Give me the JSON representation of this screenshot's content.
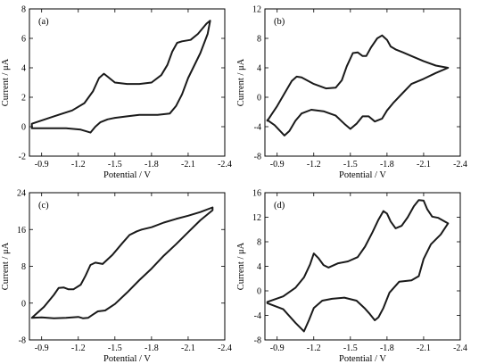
{
  "chart_data": [
    {
      "type": "line",
      "panel_label": "(a)",
      "xlabel": "Potential / V",
      "ylabel": "Current / μA",
      "xlim": [
        -0.8,
        -2.4
      ],
      "ylim": [
        -2,
        8
      ],
      "xticks": [
        -0.9,
        -1.2,
        -1.5,
        -1.8,
        -2.1,
        -2.4
      ],
      "xtick_labels": [
        "-0.9",
        "-1.2",
        "-1.5",
        "-1.8",
        "-2.1",
        "-2.4"
      ],
      "yticks": [
        -2,
        0,
        2,
        4,
        6,
        8
      ],
      "ytick_labels": [
        "-2",
        "0",
        "2",
        "4",
        "6",
        "8"
      ],
      "grid": false,
      "series": [
        {
          "x": [
            -0.82,
            -1.0,
            -1.15,
            -1.25,
            -1.32,
            -1.37,
            -1.41,
            -1.44,
            -1.5,
            -1.6,
            -1.7,
            -1.8,
            -1.88,
            -1.93,
            -1.97,
            -2.01,
            -2.05,
            -2.12,
            -2.18,
            -2.25,
            -2.28,
            -2.26,
            -2.2,
            -2.1,
            -2.05,
            -2.0,
            -1.95,
            -1.85,
            -1.7,
            -1.6,
            -1.5,
            -1.44,
            -1.38,
            -1.34,
            -1.3,
            -1.22,
            -1.1,
            -0.95,
            -0.82
          ],
          "y": [
            0.2,
            0.7,
            1.1,
            1.6,
            2.4,
            3.3,
            3.6,
            3.4,
            3.0,
            2.9,
            2.9,
            3.0,
            3.5,
            4.2,
            5.1,
            5.7,
            5.8,
            5.9,
            6.3,
            7.0,
            7.2,
            6.3,
            5.0,
            3.3,
            2.2,
            1.4,
            0.9,
            0.8,
            0.8,
            0.7,
            0.6,
            0.5,
            0.3,
            0.0,
            -0.4,
            -0.2,
            -0.1,
            -0.1,
            -0.1
          ]
        }
      ]
    },
    {
      "type": "line",
      "panel_label": "(b)",
      "xlabel": "Potential / V",
      "ylabel": "Current / μA",
      "xlim": [
        -0.8,
        -2.4
      ],
      "ylim": [
        -8,
        12
      ],
      "xticks": [
        -0.9,
        -1.2,
        -1.5,
        -1.8,
        -2.1,
        -2.4
      ],
      "xtick_labels": [
        "-0.9",
        "-1.2",
        "-1.5",
        "-1.8",
        "-2.1",
        "-2.4"
      ],
      "yticks": [
        -8,
        -4,
        0,
        4,
        8,
        12
      ],
      "ytick_labels": [
        "-8",
        "-4",
        "0",
        "4",
        "8",
        "12"
      ],
      "grid": false,
      "series": [
        {
          "x": [
            -0.82,
            -0.9,
            -0.97,
            -1.02,
            -1.06,
            -1.1,
            -1.2,
            -1.3,
            -1.38,
            -1.43,
            -1.47,
            -1.52,
            -1.56,
            -1.6,
            -1.63,
            -1.67,
            -1.72,
            -1.76,
            -1.8,
            -1.83,
            -1.87,
            -1.93,
            -2.0,
            -2.1,
            -2.2,
            -2.3,
            -2.2,
            -2.1,
            -2.0,
            -1.93,
            -1.85,
            -1.8,
            -1.76,
            -1.7,
            -1.65,
            -1.6,
            -1.55,
            -1.5,
            -1.45,
            -1.38,
            -1.28,
            -1.18,
            -1.1,
            -1.05,
            -1.0,
            -0.96,
            -0.88,
            -0.82
          ],
          "y": [
            -3.2,
            -1.2,
            0.8,
            2.2,
            2.8,
            2.7,
            1.8,
            1.2,
            1.3,
            2.3,
            4.2,
            6.0,
            6.1,
            5.6,
            5.6,
            6.8,
            8.0,
            8.4,
            7.8,
            6.9,
            6.5,
            6.1,
            5.6,
            4.9,
            4.3,
            4.0,
            3.3,
            2.5,
            1.8,
            0.6,
            -0.8,
            -1.8,
            -2.9,
            -3.3,
            -2.6,
            -2.6,
            -3.6,
            -4.3,
            -3.6,
            -2.5,
            -1.9,
            -1.7,
            -2.2,
            -3.2,
            -4.6,
            -5.2,
            -3.8,
            -3.1
          ]
        }
      ]
    },
    {
      "type": "line",
      "panel_label": "(c)",
      "xlabel": "Potential / V",
      "ylabel": "Current / μA",
      "xlim": [
        -0.8,
        -2.4
      ],
      "ylim": [
        -8,
        24
      ],
      "xticks": [
        -0.9,
        -1.2,
        -1.5,
        -1.8,
        -2.1,
        -2.4
      ],
      "xtick_labels": [
        "-0.9",
        "-1.2",
        "-1.5",
        "-1.8",
        "-2.1",
        "-2.4"
      ],
      "yticks": [
        -8,
        0,
        8,
        16,
        24
      ],
      "ytick_labels": [
        "-8",
        "0",
        "8",
        "16",
        "24"
      ],
      "grid": false,
      "series": [
        {
          "x": [
            -0.82,
            -0.92,
            -1.0,
            -1.04,
            -1.08,
            -1.12,
            -1.16,
            -1.22,
            -1.26,
            -1.3,
            -1.34,
            -1.4,
            -1.48,
            -1.56,
            -1.62,
            -1.68,
            -1.72,
            -1.8,
            -1.9,
            -2.0,
            -2.1,
            -2.2,
            -2.3,
            -2.3,
            -2.2,
            -2.1,
            -2.0,
            -1.9,
            -1.8,
            -1.7,
            -1.6,
            -1.5,
            -1.42,
            -1.36,
            -1.32,
            -1.28,
            -1.24,
            -1.2,
            -1.1,
            -1.0,
            -0.9,
            -0.82
          ],
          "y": [
            -3.2,
            -0.8,
            1.8,
            3.3,
            3.4,
            3.0,
            3.0,
            4.0,
            6.0,
            8.3,
            8.8,
            8.5,
            10.5,
            13.0,
            14.8,
            15.6,
            16.0,
            16.5,
            17.5,
            18.3,
            19.0,
            19.8,
            20.8,
            20.2,
            18.0,
            15.4,
            12.8,
            10.3,
            7.5,
            5.0,
            2.3,
            -0.2,
            -1.6,
            -1.8,
            -2.5,
            -3.2,
            -3.3,
            -3.0,
            -3.2,
            -3.3,
            -3.1,
            -3.2
          ]
        }
      ]
    },
    {
      "type": "line",
      "panel_label": "(d)",
      "xlabel": "Potential / V",
      "ylabel": "Current / μA",
      "xlim": [
        -0.8,
        -2.4
      ],
      "ylim": [
        -8,
        16
      ],
      "xticks": [
        -0.9,
        -1.2,
        -1.5,
        -1.8,
        -2.1,
        -2.4
      ],
      "xtick_labels": [
        "-0.9",
        "-1.2",
        "-1.5",
        "-1.8",
        "-2.1",
        "-2.4"
      ],
      "yticks": [
        -8,
        -4,
        0,
        4,
        8,
        12,
        16
      ],
      "ytick_labels": [
        "-8",
        "-4",
        "0",
        "4",
        "8",
        "12",
        "16"
      ],
      "grid": false,
      "series": [
        {
          "x": [
            -0.82,
            -0.95,
            -1.05,
            -1.12,
            -1.17,
            -1.2,
            -1.24,
            -1.28,
            -1.32,
            -1.4,
            -1.48,
            -1.56,
            -1.62,
            -1.68,
            -1.73,
            -1.77,
            -1.8,
            -1.83,
            -1.87,
            -1.92,
            -1.97,
            -2.02,
            -2.06,
            -2.1,
            -2.13,
            -2.17,
            -2.22,
            -2.3,
            -2.24,
            -2.16,
            -2.1,
            -2.06,
            -2.0,
            -1.9,
            -1.82,
            -1.77,
            -1.73,
            -1.7,
            -1.66,
            -1.62,
            -1.55,
            -1.45,
            -1.35,
            -1.27,
            -1.2,
            -1.16,
            -1.12,
            -1.05,
            -0.95,
            -0.82
          ],
          "y": [
            -1.8,
            -0.9,
            0.5,
            2.2,
            4.3,
            6.1,
            5.3,
            4.2,
            3.8,
            4.5,
            4.8,
            5.5,
            7.2,
            9.5,
            11.6,
            13.0,
            12.6,
            11.3,
            10.2,
            10.6,
            12.0,
            13.8,
            14.8,
            14.7,
            13.3,
            12.1,
            11.9,
            11.0,
            9.2,
            7.6,
            5.2,
            2.4,
            1.7,
            1.5,
            -0.3,
            -2.8,
            -4.3,
            -4.8,
            -3.8,
            -2.9,
            -1.6,
            -1.1,
            -1.3,
            -1.6,
            -2.8,
            -4.8,
            -6.6,
            -5.2,
            -3.0,
            -2.0
          ]
        }
      ]
    }
  ]
}
